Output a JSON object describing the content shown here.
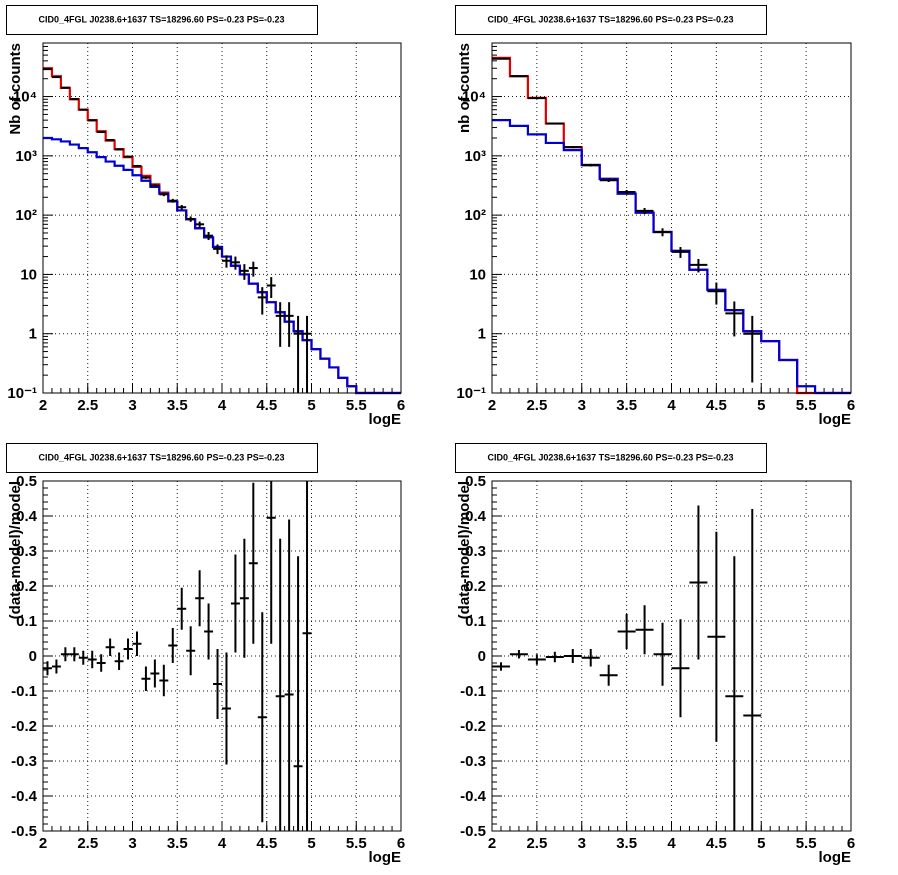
{
  "title": "CID0_4FGL J0238.6+1637 TS=18296.60 PS=-0.23 PS=-0.23",
  "colors": {
    "data": "#000000",
    "model_total": "#e00000",
    "model_source": "#0000d0"
  },
  "chart_data": [
    {
      "id": "counts-fine",
      "type": "line",
      "title": "CID0_4FGL J0238.6+1637 TS=18296.60 PS=-0.23 PS=-0.23",
      "xlabel": "logE",
      "ylabel": "Nb of counts",
      "xlim": [
        2,
        6
      ],
      "ylim": [
        0.1,
        80000
      ],
      "yscale": "log",
      "xticks": [
        "2",
        "2.5",
        "3",
        "3.5",
        "4",
        "4.5",
        "5",
        "5.5",
        "6"
      ],
      "yticks": [
        {
          "v": 0.1,
          "label": "10⁻¹"
        },
        {
          "v": 1,
          "label": "1"
        },
        {
          "v": 10,
          "label": "10"
        },
        {
          "v": 100,
          "label": "10²"
        },
        {
          "v": 1000,
          "label": "10³"
        },
        {
          "v": 10000,
          "label": "10⁴"
        }
      ],
      "grid": true,
      "bin_edges": [
        2.0,
        2.1,
        2.2,
        2.3,
        2.4,
        2.5,
        2.6,
        2.7,
        2.8,
        2.9,
        3.0,
        3.1,
        3.2,
        3.3,
        3.4,
        3.5,
        3.6,
        3.7,
        3.8,
        3.9,
        4.0,
        4.1,
        4.2,
        4.3,
        4.4,
        4.5,
        4.6,
        4.7,
        4.8,
        4.9,
        5.0,
        5.1,
        5.2,
        5.3,
        5.4,
        5.5,
        5.6,
        5.7,
        5.8,
        5.9,
        6.0
      ],
      "series": [
        {
          "role": "model_total",
          "values": [
            30000,
            22000,
            14000,
            9000,
            6000,
            4000,
            2600,
            1800,
            1300,
            950,
            650,
            460,
            330,
            240,
            170,
            120,
            85,
            60,
            42,
            29,
            20,
            14,
            10,
            7.0,
            5.0,
            3.4,
            2.3,
            1.6,
            1.1,
            0.78,
            0.55,
            0.38,
            0.27,
            0.18,
            0.13,
            0.1,
            0.1,
            0.1,
            0.1,
            0.1
          ]
        },
        {
          "role": "model_source",
          "values": [
            2000,
            1900,
            1750,
            1550,
            1350,
            1150,
            950,
            800,
            680,
            580,
            470,
            380,
            300,
            230,
            170,
            120,
            85,
            60,
            42,
            29,
            20,
            14,
            10,
            7.0,
            5.0,
            3.4,
            2.3,
            1.6,
            1.1,
            0.78,
            0.55,
            0.38,
            0.27,
            0.18,
            0.13,
            0.1,
            0.1,
            0.1,
            0.1,
            0.1
          ]
        }
      ],
      "data_points": [
        {
          "x": 2.05,
          "y": 29000,
          "lo": 28800,
          "hi": 29200
        },
        {
          "x": 2.15,
          "y": 21300,
          "lo": 21150,
          "hi": 21450
        },
        {
          "x": 2.25,
          "y": 14100,
          "lo": 13980,
          "hi": 14220
        },
        {
          "x": 2.35,
          "y": 9050,
          "lo": 8955,
          "hi": 9145
        },
        {
          "x": 2.45,
          "y": 6000,
          "lo": 5923,
          "hi": 6077
        },
        {
          "x": 2.55,
          "y": 3960,
          "lo": 3897,
          "hi": 4023
        },
        {
          "x": 2.65,
          "y": 2520,
          "lo": 2470,
          "hi": 2570
        },
        {
          "x": 2.75,
          "y": 1850,
          "lo": 1807,
          "hi": 1893
        },
        {
          "x": 2.85,
          "y": 1280,
          "lo": 1244,
          "hi": 1316
        },
        {
          "x": 2.95,
          "y": 970,
          "lo": 939,
          "hi": 1001
        },
        {
          "x": 3.05,
          "y": 675,
          "lo": 649,
          "hi": 701
        },
        {
          "x": 3.15,
          "y": 430,
          "lo": 409,
          "hi": 451
        },
        {
          "x": 3.25,
          "y": 315,
          "lo": 297,
          "hi": 333
        },
        {
          "x": 3.35,
          "y": 224,
          "lo": 209,
          "hi": 239
        },
        {
          "x": 3.45,
          "y": 175,
          "lo": 162,
          "hi": 188
        },
        {
          "x": 3.55,
          "y": 136,
          "lo": 124,
          "hi": 148
        },
        {
          "x": 3.65,
          "y": 86,
          "lo": 77,
          "hi": 95
        },
        {
          "x": 3.75,
          "y": 70,
          "lo": 62,
          "hi": 78
        },
        {
          "x": 3.85,
          "y": 45,
          "lo": 38,
          "hi": 52
        },
        {
          "x": 3.95,
          "y": 27,
          "lo": 22,
          "hi": 32
        },
        {
          "x": 4.05,
          "y": 17,
          "lo": 13,
          "hi": 21
        },
        {
          "x": 4.15,
          "y": 16,
          "lo": 12,
          "hi": 20
        },
        {
          "x": 4.25,
          "y": 11.5,
          "lo": 8.1,
          "hi": 14.9
        },
        {
          "x": 4.35,
          "y": 12.8,
          "lo": 9.2,
          "hi": 16.4
        },
        {
          "x": 4.45,
          "y": 4.1,
          "lo": 2.1,
          "hi": 6.1
        },
        {
          "x": 4.55,
          "y": 6.5,
          "lo": 4.0,
          "hi": 9.0
        },
        {
          "x": 4.65,
          "y": 2.0,
          "lo": 0.6,
          "hi": 3.4
        },
        {
          "x": 4.75,
          "y": 2.0,
          "lo": 0.6,
          "hi": 3.4
        },
        {
          "x": 4.85,
          "y": 1.0,
          "lo": 0.05,
          "hi": 2.0
        },
        {
          "x": 4.95,
          "y": 1.0,
          "lo": 0.05,
          "hi": 2.0
        }
      ]
    },
    {
      "id": "counts-coarse",
      "type": "line",
      "title": "CID0_4FGL J0238.6+1637 TS=18296.60 PS=-0.23 PS=-0.23",
      "xlabel": "logE",
      "ylabel": "nb of counts",
      "xlim": [
        2,
        6
      ],
      "ylim": [
        0.1,
        80000
      ],
      "yscale": "log",
      "xticks": [
        "2",
        "2.5",
        "3",
        "3.5",
        "4",
        "4.5",
        "5",
        "5.5",
        "6"
      ],
      "yticks": [
        {
          "v": 0.1,
          "label": "10⁻¹"
        },
        {
          "v": 1,
          "label": "1"
        },
        {
          "v": 10,
          "label": "10"
        },
        {
          "v": 100,
          "label": "10²"
        },
        {
          "v": 1000,
          "label": "10³"
        },
        {
          "v": 10000,
          "label": "10⁴"
        }
      ],
      "grid": true,
      "bin_edges": [
        2.0,
        2.2,
        2.4,
        2.6,
        2.8,
        3.0,
        3.2,
        3.4,
        3.6,
        3.8,
        4.0,
        4.2,
        4.4,
        4.6,
        4.8,
        5.0,
        5.2,
        5.4,
        5.6,
        5.8,
        6.0
      ],
      "series": [
        {
          "role": "model_total",
          "values": [
            45000,
            22000,
            9500,
            3500,
            1400,
            700,
            410,
            230,
            110,
            52,
            25,
            12,
            5.5,
            2.5,
            1.1,
            0.75,
            0.36,
            0.1,
            0.1,
            0.1
          ]
        },
        {
          "role": "model_source",
          "values": [
            4000,
            3200,
            2300,
            1650,
            1250,
            700,
            410,
            230,
            110,
            52,
            25,
            12,
            5.5,
            2.5,
            1.1,
            0.75,
            0.36,
            0.13,
            0.1,
            0.1
          ]
        }
      ],
      "data_points": [
        {
          "x": 2.1,
          "y": 43500,
          "lo": 43200,
          "hi": 43800
        },
        {
          "x": 2.3,
          "y": 22100,
          "lo": 21880,
          "hi": 22320
        },
        {
          "x": 2.5,
          "y": 9400,
          "lo": 9250,
          "hi": 9550
        },
        {
          "x": 2.7,
          "y": 3510,
          "lo": 3420,
          "hi": 3600
        },
        {
          "x": 2.9,
          "y": 1405,
          "lo": 1350,
          "hi": 1460
        },
        {
          "x": 3.1,
          "y": 695,
          "lo": 660,
          "hi": 730
        },
        {
          "x": 3.3,
          "y": 388,
          "lo": 362,
          "hi": 414
        },
        {
          "x": 3.5,
          "y": 246,
          "lo": 226,
          "hi": 266
        },
        {
          "x": 3.7,
          "y": 118,
          "lo": 104,
          "hi": 132
        },
        {
          "x": 3.9,
          "y": 52,
          "lo": 44,
          "hi": 60
        },
        {
          "x": 4.1,
          "y": 24,
          "lo": 19,
          "hi": 29
        },
        {
          "x": 4.3,
          "y": 14.5,
          "lo": 10.8,
          "hi": 18.2
        },
        {
          "x": 4.5,
          "y": 5.2,
          "lo": 3.1,
          "hi": 7.3
        },
        {
          "x": 4.7,
          "y": 2.2,
          "lo": 0.9,
          "hi": 3.5
        },
        {
          "x": 4.9,
          "y": 1.0,
          "lo": 0.15,
          "hi": 2.0
        }
      ]
    },
    {
      "id": "residuals-fine",
      "type": "scatter",
      "title": "CID0_4FGL J0238.6+1637 TS=18296.60 PS=-0.23 PS=-0.23",
      "xlabel": "logE",
      "ylabel": "(data-model)/model",
      "xlim": [
        2,
        6
      ],
      "ylim": [
        -0.5,
        0.5
      ],
      "xticks": [
        "2",
        "2.5",
        "3",
        "3.5",
        "4",
        "4.5",
        "5",
        "5.5",
        "6"
      ],
      "yticks": [
        "-0.5",
        "-0.4",
        "-0.3",
        "-0.2",
        "-0.1",
        "0",
        "0.1",
        "0.2",
        "0.3",
        "0.4",
        "0.5"
      ],
      "grid": true,
      "half_width": 0.05,
      "points": [
        {
          "x": 2.05,
          "y": -0.035,
          "err": 0.02
        },
        {
          "x": 2.15,
          "y": -0.03,
          "err": 0.02
        },
        {
          "x": 2.25,
          "y": 0.005,
          "err": 0.02
        },
        {
          "x": 2.35,
          "y": 0.005,
          "err": 0.02
        },
        {
          "x": 2.45,
          "y": -0.005,
          "err": 0.02
        },
        {
          "x": 2.55,
          "y": -0.01,
          "err": 0.025
        },
        {
          "x": 2.65,
          "y": -0.02,
          "err": 0.025
        },
        {
          "x": 2.75,
          "y": 0.025,
          "err": 0.025
        },
        {
          "x": 2.85,
          "y": -0.015,
          "err": 0.025
        },
        {
          "x": 2.95,
          "y": 0.02,
          "err": 0.03
        },
        {
          "x": 3.05,
          "y": 0.035,
          "err": 0.035
        },
        {
          "x": 3.15,
          "y": -0.065,
          "err": 0.035
        },
        {
          "x": 3.25,
          "y": -0.05,
          "err": 0.04
        },
        {
          "x": 3.35,
          "y": -0.07,
          "err": 0.045
        },
        {
          "x": 3.45,
          "y": 0.03,
          "err": 0.05
        },
        {
          "x": 3.55,
          "y": 0.135,
          "err": 0.06
        },
        {
          "x": 3.65,
          "y": 0.015,
          "err": 0.07
        },
        {
          "x": 3.75,
          "y": 0.165,
          "err": 0.08
        },
        {
          "x": 3.85,
          "y": 0.07,
          "err": 0.08
        },
        {
          "x": 3.95,
          "y": -0.08,
          "err": 0.1
        },
        {
          "x": 4.05,
          "y": -0.15,
          "err": 0.16
        },
        {
          "x": 4.15,
          "y": 0.15,
          "err": 0.14
        },
        {
          "x": 4.25,
          "y": 0.165,
          "err": 0.17
        },
        {
          "x": 4.35,
          "y": 0.265,
          "err": 0.23
        },
        {
          "x": 4.45,
          "y": -0.175,
          "err": 0.3
        },
        {
          "x": 4.55,
          "y": 0.395,
          "err": 0.36
        },
        {
          "x": 4.65,
          "y": -0.115,
          "err": 0.45
        },
        {
          "x": 4.75,
          "y": -0.11,
          "err": 0.5
        },
        {
          "x": 4.85,
          "y": -0.315,
          "err": 0.6
        },
        {
          "x": 4.95,
          "y": 0.065,
          "err": 0.6
        }
      ]
    },
    {
      "id": "residuals-coarse",
      "type": "scatter",
      "title": "CID0_4FGL J0238.6+1637 TS=18296.60 PS=-0.23 PS=-0.23",
      "xlabel": "logE",
      "ylabel": "(data-model)/model",
      "xlim": [
        2,
        6
      ],
      "ylim": [
        -0.5,
        0.5
      ],
      "xticks": [
        "2",
        "2.5",
        "3",
        "3.5",
        "4",
        "4.5",
        "5",
        "5.5",
        "6"
      ],
      "yticks": [
        "-0.5",
        "-0.4",
        "-0.3",
        "-0.2",
        "-0.1",
        "0",
        "0.1",
        "0.2",
        "0.3",
        "0.4",
        "0.5"
      ],
      "grid": true,
      "half_width": 0.1,
      "points": [
        {
          "x": 2.1,
          "y": -0.03,
          "err": 0.012
        },
        {
          "x": 2.3,
          "y": 0.005,
          "err": 0.012
        },
        {
          "x": 2.5,
          "y": -0.01,
          "err": 0.015
        },
        {
          "x": 2.7,
          "y": -0.003,
          "err": 0.015
        },
        {
          "x": 2.9,
          "y": 0.0,
          "err": 0.02
        },
        {
          "x": 3.1,
          "y": -0.005,
          "err": 0.025
        },
        {
          "x": 3.3,
          "y": -0.055,
          "err": 0.03
        },
        {
          "x": 3.5,
          "y": 0.07,
          "err": 0.05
        },
        {
          "x": 3.7,
          "y": 0.075,
          "err": 0.07
        },
        {
          "x": 3.9,
          "y": 0.005,
          "err": 0.09
        },
        {
          "x": 4.1,
          "y": -0.035,
          "err": 0.14
        },
        {
          "x": 4.3,
          "y": 0.21,
          "err": 0.22
        },
        {
          "x": 4.5,
          "y": 0.055,
          "err": 0.3
        },
        {
          "x": 4.7,
          "y": -0.115,
          "err": 0.4
        },
        {
          "x": 4.9,
          "y": -0.17,
          "err": 0.59
        }
      ]
    }
  ]
}
